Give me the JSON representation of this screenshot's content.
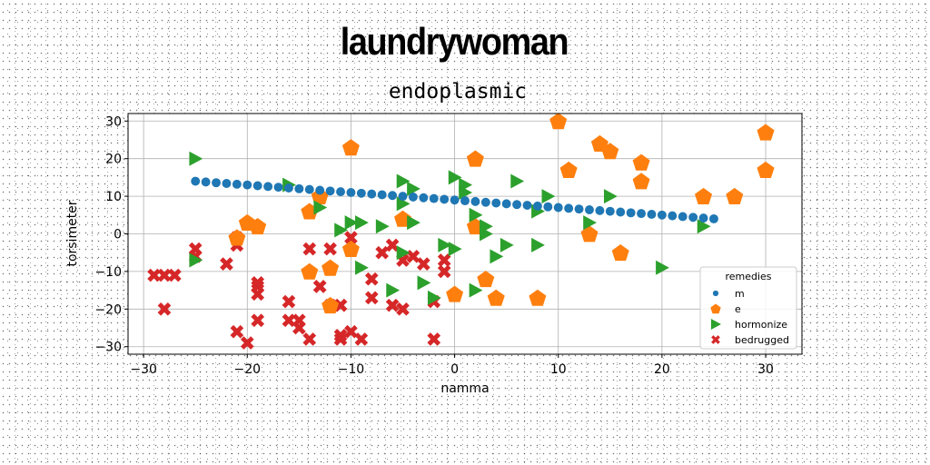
{
  "chart_data": {
    "type": "scatter",
    "title": "laundrywoman",
    "subtitle": "endoplasmic",
    "xlabel": "namma",
    "ylabel": "torsimeter",
    "xlim": [
      -31.5,
      33.5
    ],
    "ylim": [
      -32,
      32
    ],
    "xticks": [
      -30,
      -20,
      -10,
      0,
      10,
      20,
      30
    ],
    "yticks": [
      -30,
      -20,
      -10,
      0,
      10,
      20,
      30
    ],
    "grid": true,
    "legend": {
      "title": "remedies",
      "placement": "lower-right"
    },
    "series": [
      {
        "name": "m",
        "marker": "circle",
        "color": "#1f77b4",
        "x": [
          -25,
          -24,
          -23,
          -22,
          -21,
          -20,
          -19,
          -18,
          -17,
          -16,
          -15,
          -14,
          -13,
          -12,
          -11,
          -10,
          -9,
          -8,
          -7,
          -6,
          -5,
          -4,
          -3,
          -2,
          -1,
          0,
          1,
          2,
          3,
          4,
          5,
          6,
          7,
          8,
          9,
          10,
          11,
          12,
          13,
          14,
          15,
          16,
          17,
          18,
          19,
          20,
          21,
          22,
          23,
          24,
          25
        ],
        "y": [
          14,
          13.8,
          13.6,
          13.4,
          13.2,
          13,
          12.8,
          12.6,
          12.4,
          12.2,
          12,
          11.8,
          11.6,
          11.4,
          11.2,
          11,
          10.8,
          10.6,
          10.4,
          10.2,
          10,
          9.8,
          9.6,
          9.4,
          9.2,
          9,
          8.8,
          8.6,
          8.4,
          8.2,
          8,
          7.8,
          7.6,
          7.4,
          7.2,
          7,
          6.8,
          6.6,
          6.4,
          6.2,
          6,
          5.8,
          5.6,
          5.4,
          5.2,
          5,
          4.8,
          4.6,
          4.4,
          4.2,
          4
        ]
      },
      {
        "name": "e",
        "marker": "pentagon",
        "color": "#ff7f0e",
        "x": [
          -21,
          -20,
          -19,
          -14,
          -13,
          -14,
          -12,
          -12,
          -10,
          -10,
          -5,
          0,
          2,
          2,
          3,
          4,
          8,
          10,
          11,
          13,
          14,
          15,
          16,
          18,
          18,
          24,
          27,
          30,
          30
        ],
        "y": [
          -1,
          3,
          2,
          6,
          10,
          -10,
          -9,
          -19,
          23,
          -4,
          4,
          -16,
          20,
          2,
          -12,
          -17,
          -17,
          30,
          17,
          0,
          24,
          22,
          -5,
          19,
          14,
          10,
          10,
          27,
          17
        ]
      },
      {
        "name": "hormonize",
        "marker": "triangle-right",
        "color": "#2ca02c",
        "x": [
          -25,
          -25,
          -16,
          -13,
          -11,
          -10,
          -9,
          -9,
          -7,
          -6,
          -5,
          -5,
          -5,
          -4,
          -4,
          -3,
          -2,
          -1,
          0,
          0,
          1,
          1,
          2,
          2,
          3,
          3,
          4,
          5,
          6,
          8,
          8,
          9,
          13,
          15,
          20,
          24
        ],
        "y": [
          20,
          -7,
          13,
          7,
          1,
          3,
          3,
          -9,
          2,
          -15,
          -5,
          14,
          8,
          12,
          3,
          -13,
          -17,
          -3,
          15,
          -4,
          13,
          11,
          5,
          -15,
          2,
          0,
          -6,
          -3,
          14,
          -3,
          6,
          10,
          3,
          10,
          -9,
          2
        ]
      },
      {
        "name": "bedrugged",
        "marker": "x",
        "color": "#d62728",
        "x": [
          -29,
          -28,
          -28,
          -27,
          -25,
          -25,
          -22,
          -21,
          -21,
          -21,
          -20,
          -19,
          -19,
          -19,
          -19,
          -16,
          -16,
          -15,
          -15,
          -14,
          -14,
          -13,
          -13,
          -12,
          -12,
          -11,
          -11,
          -11,
          -11,
          -10,
          -10,
          -9,
          -8,
          -8,
          -7,
          -6,
          -6,
          -5,
          -5,
          -4,
          -3,
          -2,
          -2,
          -1,
          -1
        ],
        "y": [
          -11,
          -11,
          -20,
          -11,
          -6,
          -4,
          -8,
          -3,
          -1,
          -26,
          -29,
          -14,
          -13,
          -16,
          -23,
          -18,
          -23,
          -25,
          -23,
          -28,
          -4,
          -14,
          -14,
          -4,
          -19,
          -19,
          -27,
          -28,
          -19,
          -26,
          -1,
          -28,
          -12,
          -17,
          -5,
          -3,
          -19,
          -20,
          -7,
          -6,
          -8,
          -28,
          -18,
          -7,
          -10
        ]
      }
    ]
  }
}
